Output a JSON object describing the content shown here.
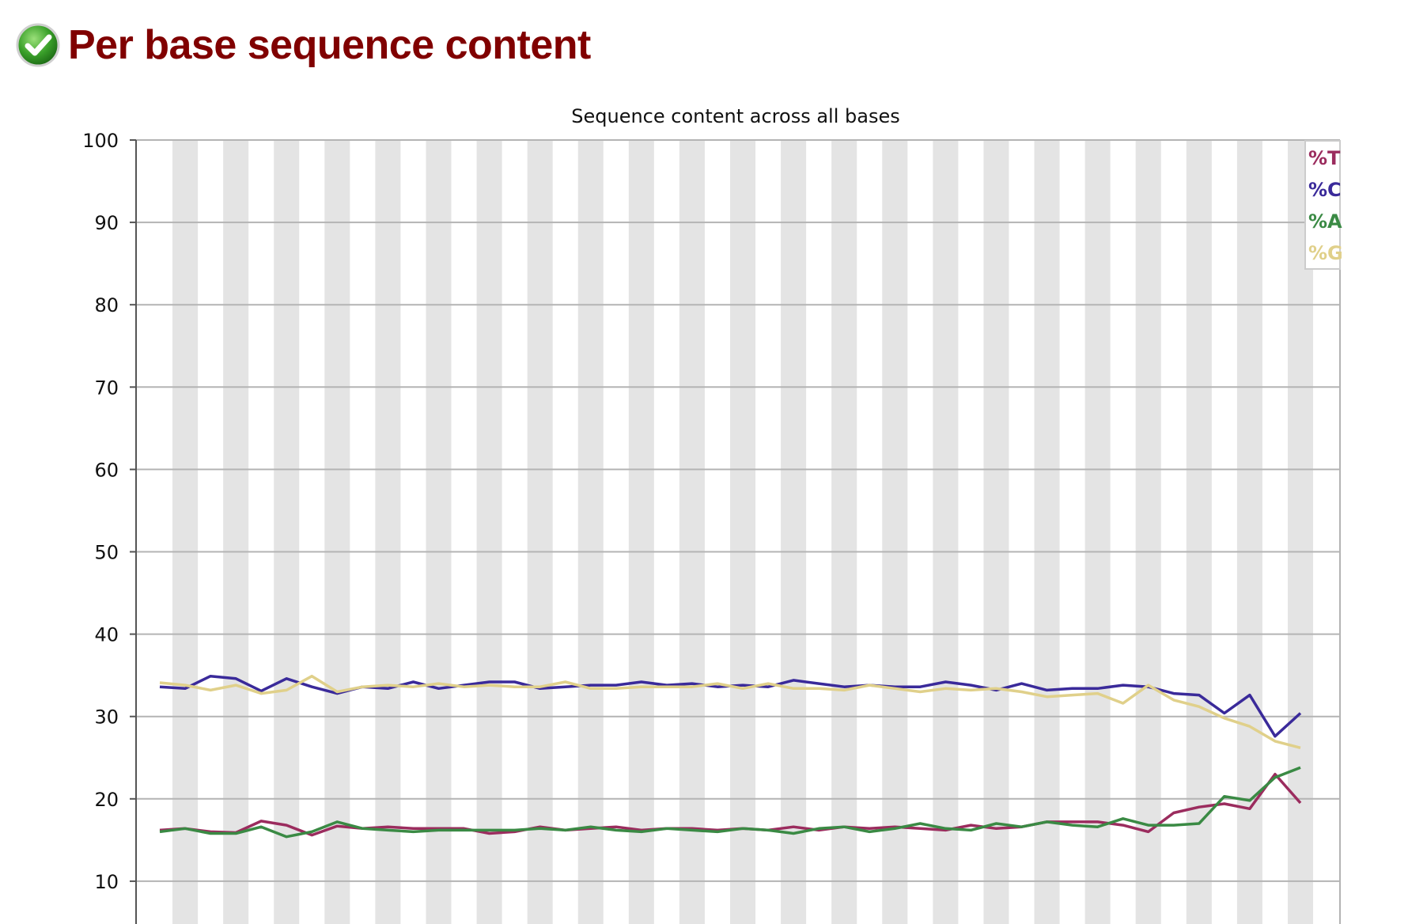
{
  "header": {
    "title": "Per base sequence content",
    "status_icon": "check-circle-icon",
    "status_color": "#3aa02a"
  },
  "chart_data": {
    "type": "line",
    "title": "Sequence content across all bases",
    "xlabel": "",
    "ylabel": "",
    "ylim": [
      0,
      100
    ],
    "ytick_values": [
      10,
      20,
      30,
      40,
      50,
      60,
      70,
      80,
      90,
      100
    ],
    "ytick_labels": [
      "10",
      "20",
      "30",
      "40",
      "50",
      "60",
      "70",
      "80",
      "90",
      "100"
    ],
    "grid": true,
    "band_count": 46,
    "legend_position": "top-right",
    "series": [
      {
        "name": "%T",
        "color": "#9b2c5e",
        "values": [
          16.2,
          16.4,
          16.0,
          15.9,
          17.3,
          16.8,
          15.6,
          16.7,
          16.4,
          16.6,
          16.4,
          16.4,
          16.4,
          15.8,
          16.0,
          16.6,
          16.2,
          16.4,
          16.6,
          16.2,
          16.4,
          16.4,
          16.2,
          16.4,
          16.2,
          16.6,
          16.2,
          16.6,
          16.4,
          16.6,
          16.4,
          16.2,
          16.8,
          16.4,
          16.6,
          17.2,
          17.2,
          17.2,
          16.8,
          16.0,
          18.3,
          19.0,
          19.4,
          18.8,
          23.0,
          19.5
        ]
      },
      {
        "name": "%C",
        "color": "#3a2a9a",
        "values": [
          33.6,
          33.4,
          34.9,
          34.6,
          33.1,
          34.6,
          33.6,
          32.8,
          33.6,
          33.4,
          34.2,
          33.4,
          33.8,
          34.2,
          34.2,
          33.4,
          33.6,
          33.8,
          33.8,
          34.2,
          33.8,
          34.0,
          33.6,
          33.8,
          33.6,
          34.4,
          34.0,
          33.6,
          33.8,
          33.6,
          33.6,
          34.2,
          33.8,
          33.2,
          34.0,
          33.2,
          33.4,
          33.4,
          33.8,
          33.6,
          32.8,
          32.6,
          30.4,
          32.6,
          27.6,
          30.4
        ]
      },
      {
        "name": "%A",
        "color": "#3a8a44",
        "values": [
          16.0,
          16.4,
          15.8,
          15.8,
          16.6,
          15.4,
          16.0,
          17.2,
          16.4,
          16.2,
          16.0,
          16.2,
          16.2,
          16.2,
          16.2,
          16.4,
          16.2,
          16.6,
          16.2,
          16.0,
          16.4,
          16.2,
          16.0,
          16.4,
          16.2,
          15.8,
          16.4,
          16.6,
          16.0,
          16.4,
          17.0,
          16.4,
          16.2,
          17.0,
          16.6,
          17.2,
          16.8,
          16.6,
          17.6,
          16.8,
          16.8,
          17.0,
          20.3,
          19.8,
          22.6,
          23.8
        ]
      },
      {
        "name": "%G",
        "color": "#e0d08a",
        "values": [
          34.1,
          33.8,
          33.2,
          33.8,
          32.8,
          33.2,
          34.9,
          33.0,
          33.6,
          33.8,
          33.6,
          34.0,
          33.6,
          33.8,
          33.6,
          33.6,
          34.2,
          33.4,
          33.4,
          33.6,
          33.6,
          33.6,
          34.0,
          33.4,
          34.0,
          33.4,
          33.4,
          33.2,
          33.8,
          33.4,
          33.0,
          33.4,
          33.2,
          33.4,
          33.0,
          32.4,
          32.6,
          32.8,
          31.6,
          33.8,
          32.0,
          31.2,
          29.8,
          28.8,
          27.0,
          26.2
        ]
      }
    ]
  }
}
